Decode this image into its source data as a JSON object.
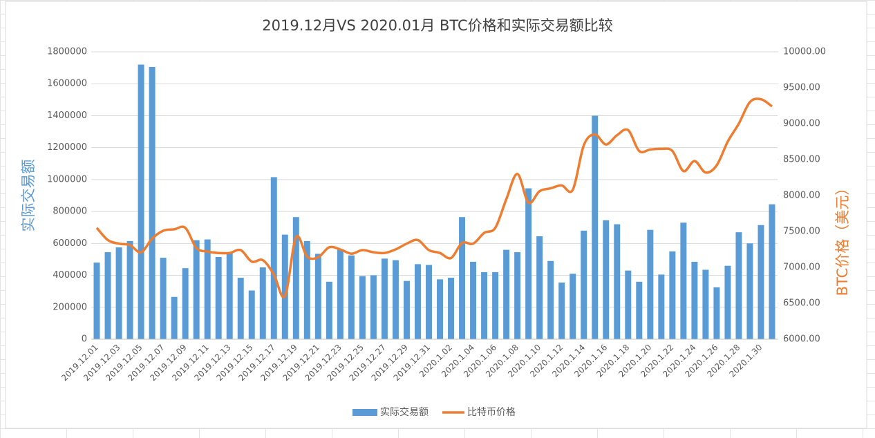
{
  "chart_data": {
    "type": "combo",
    "title": "2019.12月VS 2020.01月 BTC价格和实际交易额比较",
    "y_label": "实际交易额",
    "y2_label": "BTC价格（美元）",
    "categories": [
      "2019.12.01",
      null,
      "2019.12.03",
      null,
      "2019.12.05",
      null,
      "2019.12.07",
      null,
      "2019.12.09",
      null,
      "2019.12.11",
      null,
      "2019.12.13",
      null,
      "2019.12.15",
      null,
      "2019.12.17",
      null,
      "2019.12.19",
      null,
      "2019.12.21",
      null,
      "2019.12.23",
      null,
      "2019.12.25",
      null,
      "2019.12.27",
      null,
      "2019.12.29",
      null,
      "2019.12.31",
      null,
      "2020.1.02",
      null,
      "2020.1.04",
      null,
      "2020.1.06",
      null,
      "2020.1.08",
      null,
      "2020.1.10",
      null,
      "2020.1.12",
      null,
      "2020.1.14",
      null,
      "2020.1.16",
      null,
      "2020.1.18",
      null,
      "2020.1.20",
      null,
      "2020.1.22",
      null,
      "2020.1.24",
      null,
      "2020.1.26",
      null,
      "2020.1.28",
      null,
      "2020.1.30",
      null
    ],
    "series": [
      {
        "name": "实际交易额",
        "type": "bar",
        "color": "#5b9bd5",
        "values": [
          480000,
          545000,
          575000,
          615000,
          1720000,
          1705000,
          510000,
          265000,
          445000,
          620000,
          625000,
          515000,
          545000,
          385000,
          305000,
          450000,
          1015000,
          655000,
          765000,
          615000,
          535000,
          360000,
          565000,
          525000,
          395000,
          400000,
          505000,
          495000,
          365000,
          470000,
          465000,
          375000,
          385000,
          765000,
          485000,
          420000,
          420000,
          560000,
          545000,
          945000,
          645000,
          490000,
          355000,
          410000,
          680000,
          1400000,
          745000,
          720000,
          430000,
          360000,
          685000,
          405000,
          550000,
          730000,
          485000,
          435000,
          325000,
          460000,
          670000,
          600000,
          715000,
          845000
        ]
      },
      {
        "name": "比特币价格",
        "type": "line",
        "axis": "y2",
        "color": "#ed7d31",
        "values": [
          7550,
          7380,
          7330,
          7310,
          7210,
          7400,
          7510,
          7530,
          7550,
          7270,
          7220,
          7200,
          7200,
          7240,
          7080,
          7100,
          6900,
          6600,
          7420,
          7150,
          7140,
          7280,
          7250,
          7190,
          7240,
          7210,
          7200,
          7250,
          7330,
          7380,
          7240,
          7200,
          7130,
          7340,
          7330,
          7480,
          7550,
          7950,
          8300,
          7900,
          8060,
          8100,
          8140,
          8080,
          8700,
          8850,
          8710,
          8840,
          8910,
          8620,
          8640,
          8650,
          8620,
          8340,
          8480,
          8320,
          8420,
          8750,
          9000,
          9300,
          9340,
          9240
        ]
      }
    ],
    "ylim": [
      0,
      1800000
    ],
    "yticks": [
      0,
      200000,
      400000,
      600000,
      800000,
      1000000,
      1200000,
      1400000,
      1600000,
      1800000
    ],
    "y2lim": [
      6000,
      10000
    ],
    "y2ticks": [
      {
        "value": 6000,
        "label": "6000.00"
      },
      {
        "value": 6500,
        "label": "6500.00"
      },
      {
        "value": 7000,
        "label": "7000.00"
      },
      {
        "value": 7500,
        "label": "7500.00"
      },
      {
        "value": 8000,
        "label": "8000.00"
      },
      {
        "value": 8500,
        "label": "8500.00"
      },
      {
        "value": 9000,
        "label": "9000.00"
      },
      {
        "value": 9500,
        "label": "9500.00"
      },
      {
        "value": 10000,
        "label": "10000.00"
      }
    ],
    "grid": true,
    "legend": "bottom"
  }
}
